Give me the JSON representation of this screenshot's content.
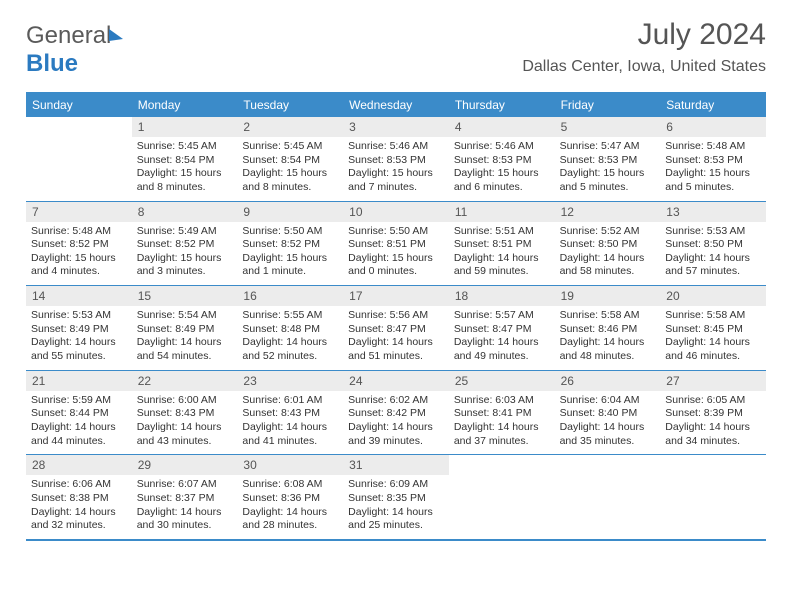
{
  "brand": {
    "part1": "General",
    "part2": "Blue"
  },
  "title": "July 2024",
  "location": "Dallas Center, Iowa, United States",
  "colors": {
    "header_bg": "#3b8bc9",
    "header_text": "#ffffff",
    "daynum_bg": "#ececec",
    "body_text": "#333333",
    "title_text": "#555555"
  },
  "typography": {
    "title_fontsize": 30,
    "location_fontsize": 16,
    "dow_fontsize": 12,
    "daynum_fontsize": 12,
    "body_fontsize": 10.5
  },
  "days_of_week": [
    "Sunday",
    "Monday",
    "Tuesday",
    "Wednesday",
    "Thursday",
    "Friday",
    "Saturday"
  ],
  "weeks": [
    [
      {
        "n": "",
        "l1": "",
        "l2": "",
        "l3": "",
        "l4": ""
      },
      {
        "n": "1",
        "l1": "Sunrise: 5:45 AM",
        "l2": "Sunset: 8:54 PM",
        "l3": "Daylight: 15 hours",
        "l4": "and 8 minutes."
      },
      {
        "n": "2",
        "l1": "Sunrise: 5:45 AM",
        "l2": "Sunset: 8:54 PM",
        "l3": "Daylight: 15 hours",
        "l4": "and 8 minutes."
      },
      {
        "n": "3",
        "l1": "Sunrise: 5:46 AM",
        "l2": "Sunset: 8:53 PM",
        "l3": "Daylight: 15 hours",
        "l4": "and 7 minutes."
      },
      {
        "n": "4",
        "l1": "Sunrise: 5:46 AM",
        "l2": "Sunset: 8:53 PM",
        "l3": "Daylight: 15 hours",
        "l4": "and 6 minutes."
      },
      {
        "n": "5",
        "l1": "Sunrise: 5:47 AM",
        "l2": "Sunset: 8:53 PM",
        "l3": "Daylight: 15 hours",
        "l4": "and 5 minutes."
      },
      {
        "n": "6",
        "l1": "Sunrise: 5:48 AM",
        "l2": "Sunset: 8:53 PM",
        "l3": "Daylight: 15 hours",
        "l4": "and 5 minutes."
      }
    ],
    [
      {
        "n": "7",
        "l1": "Sunrise: 5:48 AM",
        "l2": "Sunset: 8:52 PM",
        "l3": "Daylight: 15 hours",
        "l4": "and 4 minutes."
      },
      {
        "n": "8",
        "l1": "Sunrise: 5:49 AM",
        "l2": "Sunset: 8:52 PM",
        "l3": "Daylight: 15 hours",
        "l4": "and 3 minutes."
      },
      {
        "n": "9",
        "l1": "Sunrise: 5:50 AM",
        "l2": "Sunset: 8:52 PM",
        "l3": "Daylight: 15 hours",
        "l4": "and 1 minute."
      },
      {
        "n": "10",
        "l1": "Sunrise: 5:50 AM",
        "l2": "Sunset: 8:51 PM",
        "l3": "Daylight: 15 hours",
        "l4": "and 0 minutes."
      },
      {
        "n": "11",
        "l1": "Sunrise: 5:51 AM",
        "l2": "Sunset: 8:51 PM",
        "l3": "Daylight: 14 hours",
        "l4": "and 59 minutes."
      },
      {
        "n": "12",
        "l1": "Sunrise: 5:52 AM",
        "l2": "Sunset: 8:50 PM",
        "l3": "Daylight: 14 hours",
        "l4": "and 58 minutes."
      },
      {
        "n": "13",
        "l1": "Sunrise: 5:53 AM",
        "l2": "Sunset: 8:50 PM",
        "l3": "Daylight: 14 hours",
        "l4": "and 57 minutes."
      }
    ],
    [
      {
        "n": "14",
        "l1": "Sunrise: 5:53 AM",
        "l2": "Sunset: 8:49 PM",
        "l3": "Daylight: 14 hours",
        "l4": "and 55 minutes."
      },
      {
        "n": "15",
        "l1": "Sunrise: 5:54 AM",
        "l2": "Sunset: 8:49 PM",
        "l3": "Daylight: 14 hours",
        "l4": "and 54 minutes."
      },
      {
        "n": "16",
        "l1": "Sunrise: 5:55 AM",
        "l2": "Sunset: 8:48 PM",
        "l3": "Daylight: 14 hours",
        "l4": "and 52 minutes."
      },
      {
        "n": "17",
        "l1": "Sunrise: 5:56 AM",
        "l2": "Sunset: 8:47 PM",
        "l3": "Daylight: 14 hours",
        "l4": "and 51 minutes."
      },
      {
        "n": "18",
        "l1": "Sunrise: 5:57 AM",
        "l2": "Sunset: 8:47 PM",
        "l3": "Daylight: 14 hours",
        "l4": "and 49 minutes."
      },
      {
        "n": "19",
        "l1": "Sunrise: 5:58 AM",
        "l2": "Sunset: 8:46 PM",
        "l3": "Daylight: 14 hours",
        "l4": "and 48 minutes."
      },
      {
        "n": "20",
        "l1": "Sunrise: 5:58 AM",
        "l2": "Sunset: 8:45 PM",
        "l3": "Daylight: 14 hours",
        "l4": "and 46 minutes."
      }
    ],
    [
      {
        "n": "21",
        "l1": "Sunrise: 5:59 AM",
        "l2": "Sunset: 8:44 PM",
        "l3": "Daylight: 14 hours",
        "l4": "and 44 minutes."
      },
      {
        "n": "22",
        "l1": "Sunrise: 6:00 AM",
        "l2": "Sunset: 8:43 PM",
        "l3": "Daylight: 14 hours",
        "l4": "and 43 minutes."
      },
      {
        "n": "23",
        "l1": "Sunrise: 6:01 AM",
        "l2": "Sunset: 8:43 PM",
        "l3": "Daylight: 14 hours",
        "l4": "and 41 minutes."
      },
      {
        "n": "24",
        "l1": "Sunrise: 6:02 AM",
        "l2": "Sunset: 8:42 PM",
        "l3": "Daylight: 14 hours",
        "l4": "and 39 minutes."
      },
      {
        "n": "25",
        "l1": "Sunrise: 6:03 AM",
        "l2": "Sunset: 8:41 PM",
        "l3": "Daylight: 14 hours",
        "l4": "and 37 minutes."
      },
      {
        "n": "26",
        "l1": "Sunrise: 6:04 AM",
        "l2": "Sunset: 8:40 PM",
        "l3": "Daylight: 14 hours",
        "l4": "and 35 minutes."
      },
      {
        "n": "27",
        "l1": "Sunrise: 6:05 AM",
        "l2": "Sunset: 8:39 PM",
        "l3": "Daylight: 14 hours",
        "l4": "and 34 minutes."
      }
    ],
    [
      {
        "n": "28",
        "l1": "Sunrise: 6:06 AM",
        "l2": "Sunset: 8:38 PM",
        "l3": "Daylight: 14 hours",
        "l4": "and 32 minutes."
      },
      {
        "n": "29",
        "l1": "Sunrise: 6:07 AM",
        "l2": "Sunset: 8:37 PM",
        "l3": "Daylight: 14 hours",
        "l4": "and 30 minutes."
      },
      {
        "n": "30",
        "l1": "Sunrise: 6:08 AM",
        "l2": "Sunset: 8:36 PM",
        "l3": "Daylight: 14 hours",
        "l4": "and 28 minutes."
      },
      {
        "n": "31",
        "l1": "Sunrise: 6:09 AM",
        "l2": "Sunset: 8:35 PM",
        "l3": "Daylight: 14 hours",
        "l4": "and 25 minutes."
      },
      {
        "n": "",
        "l1": "",
        "l2": "",
        "l3": "",
        "l4": ""
      },
      {
        "n": "",
        "l1": "",
        "l2": "",
        "l3": "",
        "l4": ""
      },
      {
        "n": "",
        "l1": "",
        "l2": "",
        "l3": "",
        "l4": ""
      }
    ]
  ]
}
